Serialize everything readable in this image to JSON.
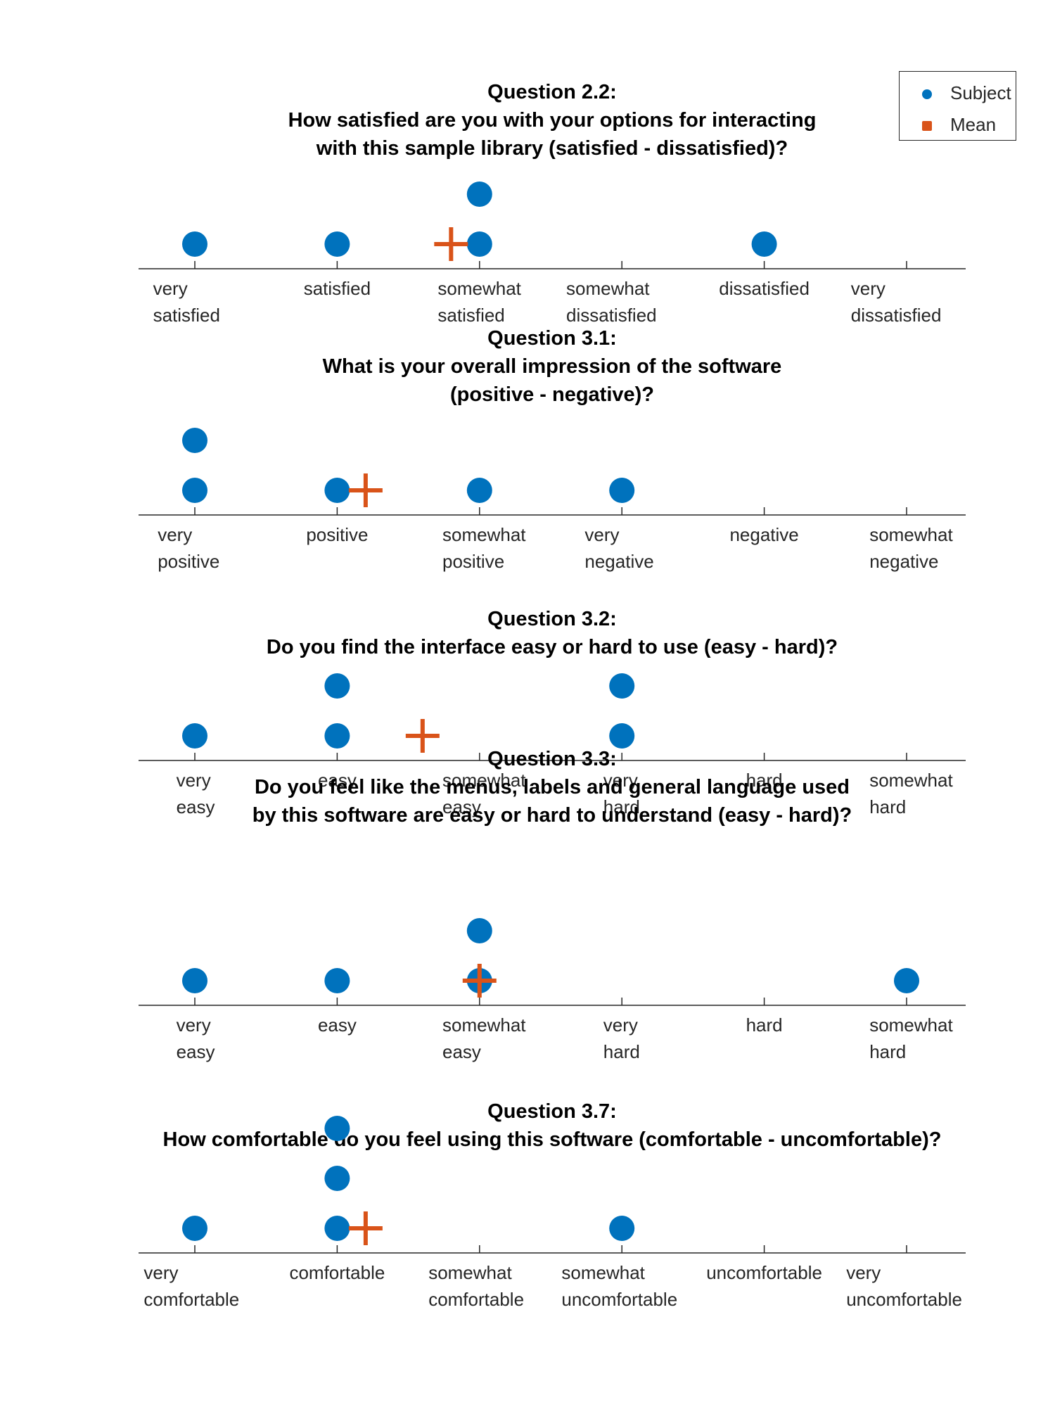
{
  "colors": {
    "subject": "#0072BD",
    "mean": "#D95319",
    "axis": "#262626",
    "text": "#000000"
  },
  "legend": {
    "subject": "Subject",
    "mean": "Mean"
  },
  "chart_data": [
    {
      "type": "scatter",
      "title": [
        "Question 2.2:",
        "How satisfied are you with your options for interacting",
        "with this sample library (satisfied - dissatisfied)?"
      ],
      "categories": [
        [
          "very",
          "satisfied"
        ],
        [
          "satisfied"
        ],
        [
          "somewhat",
          "satisfied"
        ],
        [
          "somewhat",
          "dissatisfied"
        ],
        [
          "dissatisfied"
        ],
        [
          "very",
          "dissatisfied"
        ]
      ],
      "subject_counts": [
        1,
        1,
        2,
        0,
        1,
        0
      ],
      "mean": 2.8
    },
    {
      "type": "scatter",
      "title": [
        "Question 3.1:",
        "What is your overall impression of the software",
        "(positive - negative)?"
      ],
      "categories": [
        [
          "very",
          "positive"
        ],
        [
          "positive"
        ],
        [
          "somewhat",
          "positive"
        ],
        [
          "very",
          "negative"
        ],
        [
          "negative"
        ],
        [
          "somewhat",
          "negative"
        ]
      ],
      "subject_counts": [
        2,
        1,
        1,
        1,
        0,
        0
      ],
      "mean": 2.2
    },
    {
      "type": "scatter",
      "title": [
        "Question 3.2:",
        "Do you find the interface easy or hard to use (easy - hard)?"
      ],
      "categories": [
        [
          "very",
          "easy"
        ],
        [
          "easy"
        ],
        [
          "somewhat",
          "easy"
        ],
        [
          "very",
          "hard"
        ],
        [
          "hard"
        ],
        [
          "somewhat",
          "hard"
        ]
      ],
      "subject_counts": [
        1,
        2,
        0,
        2,
        0,
        0
      ],
      "mean": 2.6
    },
    {
      "type": "scatter",
      "title": [
        "Question 3.3:",
        "Do you feel like the menus, labels and general language used",
        "by this software are easy or hard to understand (easy - hard)?"
      ],
      "categories": [
        [
          "very",
          "easy"
        ],
        [
          "easy"
        ],
        [
          "somewhat",
          "easy"
        ],
        [
          "very",
          "hard"
        ],
        [
          "hard"
        ],
        [
          "somewhat",
          "hard"
        ]
      ],
      "subject_counts": [
        1,
        1,
        2,
        0,
        0,
        1
      ],
      "mean": 3.0
    },
    {
      "type": "scatter",
      "title": [
        "Question 3.7:",
        "How comfortable do you feel using this software (comfortable - uncomfortable)?"
      ],
      "categories": [
        [
          "very",
          "comfortable"
        ],
        [
          "comfortable"
        ],
        [
          "somewhat",
          "comfortable"
        ],
        [
          "somewhat",
          "uncomfortable"
        ],
        [
          "uncomfortable"
        ],
        [
          "very",
          "uncomfortable"
        ]
      ],
      "subject_counts": [
        1,
        3,
        0,
        1,
        0,
        0
      ],
      "mean": 2.2
    }
  ]
}
